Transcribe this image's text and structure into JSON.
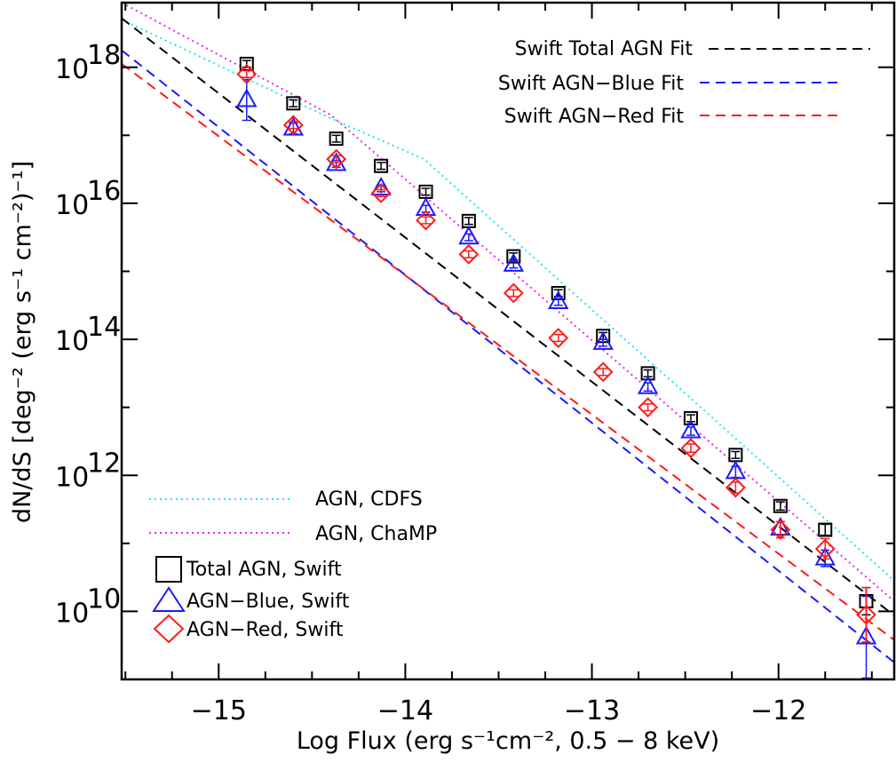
{
  "chart_data": {
    "type": "scatter",
    "title": "",
    "xlabel": "Log Flux (erg s⁻¹cm⁻², 0.5 − 8 keV)",
    "ylabel": "dN/dS [deg⁻² (erg s⁻¹ cm⁻²)⁻¹]",
    "xlim": [
      -15.52,
      -11.38
    ],
    "ylim_log10": [
      9.0,
      18.95
    ],
    "x_ticks": [
      -15,
      -14,
      -13,
      -12
    ],
    "x_tick_labels": [
      "−15",
      "−14",
      "−13",
      "−12"
    ],
    "y_ticks_log10": [
      10,
      12,
      14,
      16,
      18
    ],
    "y_tick_base": "10",
    "y_tick_exponents": [
      "10",
      "12",
      "14",
      "16",
      "18"
    ],
    "colors": {
      "total": "#000000",
      "blue": "#1a1aff",
      "red": "#ff1a1a",
      "cdfs": "#22e5ee",
      "champ": "#ee22ee"
    },
    "fits": [
      {
        "name": "Swift Total AGN Fit",
        "color": "#000000",
        "x": [
          -15.52,
          -11.38
        ],
        "log_y": [
          18.72,
          9.94
        ]
      },
      {
        "name": "Swift AGN−Blue Fit",
        "color": "#1a1aff",
        "x": [
          -15.52,
          -11.38
        ],
        "log_y": [
          18.25,
          9.25
        ]
      },
      {
        "name": "Swift AGN−Red Fit",
        "color": "#ff1a1a",
        "x": [
          -15.52,
          -11.38
        ],
        "log_y": [
          18.05,
          9.58
        ]
      }
    ],
    "references": [
      {
        "name": "AGN, CDFS",
        "color": "#22e5ee",
        "x": [
          -15.52,
          -14.4,
          -13.9,
          -11.38
        ],
        "log_y": [
          18.7,
          17.25,
          16.65,
          10.45
        ]
      },
      {
        "name": "AGN, ChaMP",
        "color": "#ee22ee",
        "x": [
          -15.52,
          -14.4,
          -11.38
        ],
        "log_y": [
          18.95,
          17.3,
          10.15
        ]
      }
    ],
    "series": [
      {
        "name": "Total AGN, Swift",
        "marker": "square",
        "color": "#000000",
        "x": [
          -14.85,
          -14.6,
          -14.37,
          -14.13,
          -13.89,
          -13.66,
          -13.42,
          -13.18,
          -12.94,
          -12.7,
          -12.47,
          -12.23,
          -11.99,
          -11.75,
          -11.53
        ],
        "log_y": [
          18.05,
          17.47,
          16.95,
          16.55,
          16.17,
          15.74,
          15.22,
          14.68,
          14.05,
          13.5,
          12.84,
          12.3,
          11.55,
          11.2,
          10.15
        ],
        "log_err": [
          0.05,
          0.05,
          0.05,
          0.05,
          0.05,
          0.05,
          0.05,
          0.05,
          0.05,
          0.05,
          0.05,
          0.05,
          0.06,
          0.08,
          0.2
        ]
      },
      {
        "name": "AGN−Blue, Swift",
        "marker": "triangle",
        "color": "#1a1aff",
        "x": [
          -14.85,
          -14.6,
          -14.37,
          -14.13,
          -13.89,
          -13.66,
          -13.42,
          -13.18,
          -12.94,
          -12.7,
          -12.47,
          -12.23,
          -11.99,
          -11.75,
          -11.53
        ],
        "log_y": [
          17.52,
          17.1,
          16.58,
          16.22,
          15.92,
          15.5,
          15.1,
          14.55,
          13.95,
          13.3,
          12.65,
          12.05,
          11.22,
          10.78,
          9.62
        ],
        "log_err": [
          0.3,
          0.08,
          0.05,
          0.05,
          0.05,
          0.05,
          0.05,
          0.05,
          0.05,
          0.06,
          0.06,
          0.08,
          0.1,
          0.12,
          0.6
        ]
      },
      {
        "name": "AGN−Red, Swift",
        "marker": "diamond",
        "color": "#ff1a1a",
        "x": [
          -14.85,
          -14.6,
          -14.37,
          -14.13,
          -13.89,
          -13.66,
          -13.42,
          -13.18,
          -12.94,
          -12.7,
          -12.47,
          -12.23,
          -11.99,
          -11.75,
          -11.53
        ],
        "log_y": [
          17.9,
          17.15,
          16.65,
          16.15,
          15.75,
          15.25,
          14.68,
          14.02,
          13.52,
          13.0,
          12.4,
          11.82,
          11.2,
          10.92,
          9.95
        ],
        "log_err": [
          0.05,
          0.05,
          0.05,
          0.05,
          0.05,
          0.05,
          0.05,
          0.05,
          0.05,
          0.05,
          0.06,
          0.08,
          0.12,
          0.15,
          0.4
        ]
      }
    ],
    "legend": {
      "fits": [
        "Swift Total AGN Fit",
        "Swift AGN−Blue Fit",
        "Swift AGN−Red Fit"
      ],
      "references": [
        "AGN, CDFS",
        "AGN, ChaMP"
      ],
      "points": [
        "Total AGN, Swift",
        "AGN−Blue, Swift",
        "AGN−Red, Swift"
      ]
    }
  }
}
